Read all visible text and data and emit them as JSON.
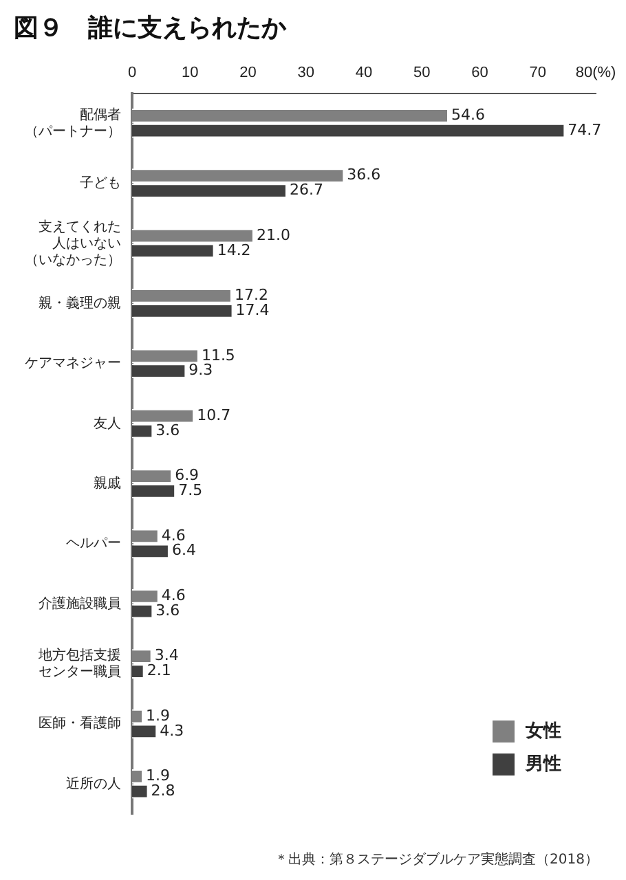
{
  "chart_data": {
    "type": "bar",
    "orientation": "horizontal",
    "title": "図９　誰に支えられたか",
    "categories": [
      "配偶者（パートナー）",
      "子ども",
      "支えてくれた人はいない（いなかった）",
      "親・義理の親",
      "ケアマネジャー",
      "友人",
      "親戚",
      "ヘルパー",
      "介護施設職員",
      "地方包括支援センター職員",
      "医師・看護師",
      "近所の人"
    ],
    "series": [
      {
        "name": "女性",
        "color": "#808080",
        "values": [
          54.6,
          36.6,
          21.0,
          17.2,
          11.5,
          10.7,
          6.9,
          4.6,
          4.6,
          3.4,
          1.9,
          1.9
        ],
        "value_labels": [
          "54.6",
          "36.6",
          "21.0",
          "17.2",
          "11.5",
          "10.7",
          "6.9",
          "4.6",
          "4.6",
          "3.4",
          "1.9",
          "1.9"
        ]
      },
      {
        "name": "男性",
        "color": "#404040",
        "values": [
          74.7,
          26.7,
          14.2,
          17.4,
          9.3,
          3.6,
          7.5,
          6.4,
          3.6,
          2.1,
          4.3,
          2.8
        ],
        "value_labels": [
          "74.7",
          "26.7",
          "14.2",
          "17.4",
          "9.3",
          "3.6",
          "7.5",
          "6.4",
          "3.6",
          "2.1",
          "4.3",
          "2.8"
        ]
      }
    ],
    "xlim": [
      0,
      80
    ],
    "xticks": [
      0,
      10,
      20,
      30,
      40,
      50,
      60,
      70,
      {
        "value": 80,
        "label": "80(%)"
      }
    ],
    "grid": false,
    "legend": "bottom right",
    "annotations": [
      "＊出典：第８ステージダブルケア実態調査（2018）"
    ]
  }
}
